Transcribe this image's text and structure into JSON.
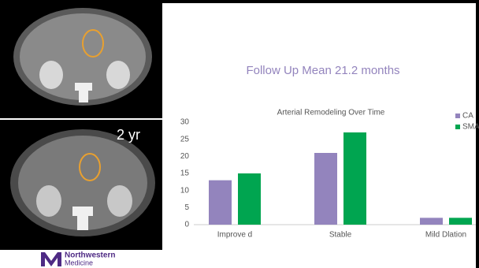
{
  "heading": "Follow Up Mean 21.2 months",
  "image_label": "2 yr",
  "logo": {
    "name": "Northwestern",
    "sub": "Medicine"
  },
  "chart_data": {
    "type": "bar",
    "title": "Arterial Remodeling Over Time",
    "categories": [
      "Improve d",
      "Stable",
      "Mild Dlation"
    ],
    "series": [
      {
        "name": "CA",
        "color": "#9384bd",
        "values": [
          13,
          21,
          2
        ]
      },
      {
        "name": "SMA",
        "color": "#00a550",
        "values": [
          15,
          27,
          2
        ]
      }
    ],
    "ylim": [
      0,
      30
    ],
    "yticks": [
      0,
      5,
      10,
      15,
      20,
      25,
      30
    ],
    "grid": false,
    "legend": "top-right"
  }
}
